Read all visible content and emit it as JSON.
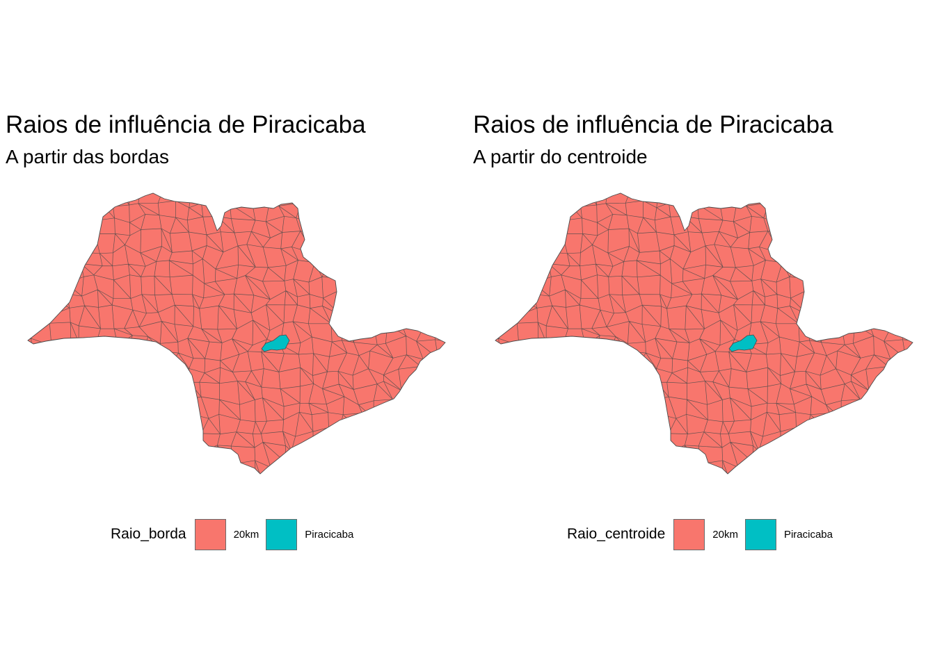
{
  "colors": {
    "outer": "#F8766D",
    "center": "#00BFC4",
    "border": "#4a4a4a"
  },
  "panels": [
    {
      "title": "Raios de influência de Piracicaba",
      "subtitle": "A partir das bordas",
      "legend": {
        "title": "Raio_borda",
        "items": [
          "20km",
          "Piracicaba"
        ]
      }
    },
    {
      "title": "Raios de influência de Piracicaba",
      "subtitle": "A partir do centroide",
      "legend": {
        "title": "Raio_centroide",
        "items": [
          "20km",
          "Piracicaba"
        ]
      }
    }
  ]
}
